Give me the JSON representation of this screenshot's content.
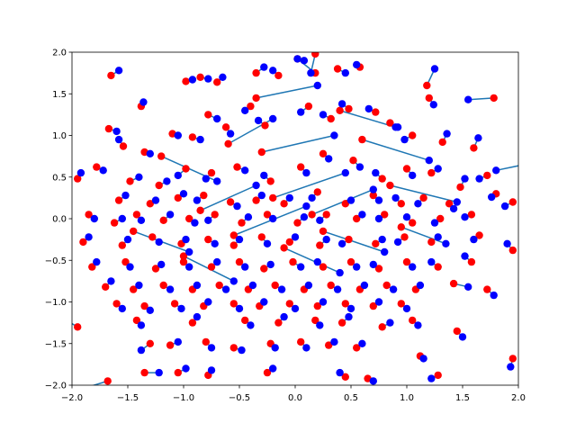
{
  "chart_data": {
    "type": "scatter",
    "xlim": [
      -2.0,
      2.0
    ],
    "ylim": [
      -2.0,
      2.0
    ],
    "xticks": [
      -2.0,
      -1.5,
      -1.0,
      -0.5,
      0.0,
      0.5,
      1.0,
      1.5,
      2.0
    ],
    "yticks": [
      -2.0,
      -1.5,
      -1.0,
      -0.5,
      0.0,
      0.5,
      1.0,
      1.5,
      2.0
    ],
    "xtick_labels": [
      "−2.0",
      "−1.5",
      "−1.0",
      "−0.5",
      "0.0",
      "0.5",
      "1.0",
      "1.5",
      "2.0"
    ],
    "ytick_labels": [
      "−2.0",
      "−1.5",
      "−1.0",
      "−0.5",
      "0.0",
      "0.5",
      "1.0",
      "1.5",
      "2.0"
    ],
    "grid": false,
    "legend": "none",
    "colors": {
      "start": "#ff0000",
      "end": "#0000ff",
      "link": "#1f77b4"
    },
    "series": [
      {
        "name": "",
        "kind": "linked-pairs",
        "pairs": [
          [
            -1.65,
            1.72,
            -1.58,
            1.78
          ],
          [
            -1.38,
            1.35,
            -1.36,
            1.4
          ],
          [
            -0.98,
            1.65,
            -0.92,
            1.67
          ],
          [
            -0.85,
            1.7,
            -0.78,
            1.68
          ],
          [
            -0.7,
            1.64,
            -0.65,
            1.7
          ],
          [
            -0.35,
            1.75,
            -0.28,
            1.82
          ],
          [
            -0.15,
            1.72,
            -0.2,
            1.78
          ],
          [
            0.02,
            1.92,
            0.08,
            1.9
          ],
          [
            0.18,
            1.98,
            0.14,
            1.75
          ],
          [
            0.38,
            1.8,
            0.45,
            1.75
          ],
          [
            0.58,
            1.82,
            0.55,
            1.85
          ],
          [
            1.18,
            1.6,
            1.25,
            1.8
          ],
          [
            1.2,
            1.45,
            1.24,
            1.37
          ],
          [
            1.78,
            1.45,
            1.55,
            1.43
          ],
          [
            -1.67,
            1.08,
            -1.6,
            1.05
          ],
          [
            -1.54,
            0.87,
            -1.58,
            0.95
          ],
          [
            -1.35,
            0.8,
            -1.3,
            0.78
          ],
          [
            -1.1,
            1.02,
            -1.05,
            1.0
          ],
          [
            -0.92,
            0.98,
            -0.85,
            0.95
          ],
          [
            -0.62,
            1.1,
            -0.58,
            1.02
          ],
          [
            -0.78,
            1.25,
            -0.7,
            1.2
          ],
          [
            -0.4,
            1.35,
            -0.45,
            1.3
          ],
          [
            -0.27,
            1.12,
            -0.33,
            1.18
          ],
          [
            0.12,
            1.35,
            0.05,
            1.28
          ],
          [
            0.32,
            1.2,
            0.25,
            1.25
          ],
          [
            0.48,
            1.32,
            0.42,
            1.38
          ],
          [
            0.72,
            1.28,
            0.66,
            1.32
          ],
          [
            0.85,
            1.15,
            0.92,
            1.1
          ],
          [
            1.05,
            1.0,
            0.98,
            0.95
          ],
          [
            1.32,
            0.92,
            1.36,
            1.02
          ],
          [
            1.6,
            0.85,
            1.64,
            0.97
          ],
          [
            -1.78,
            0.62,
            -1.72,
            0.58
          ],
          [
            -1.48,
            0.45,
            -1.4,
            0.5
          ],
          [
            -1.22,
            0.4,
            -1.15,
            0.45
          ],
          [
            -0.98,
            0.6,
            -1.05,
            0.52
          ],
          [
            -0.75,
            0.55,
            -0.8,
            0.48
          ],
          [
            -0.52,
            0.62,
            -0.45,
            0.58
          ],
          [
            -0.22,
            0.45,
            -0.28,
            0.52
          ],
          [
            0.05,
            0.62,
            0.1,
            0.55
          ],
          [
            0.25,
            0.78,
            0.3,
            0.72
          ],
          [
            0.52,
            0.7,
            0.58,
            0.62
          ],
          [
            0.78,
            0.48,
            0.72,
            0.55
          ],
          [
            1.0,
            0.6,
            1.05,
            0.52
          ],
          [
            1.22,
            0.55,
            1.28,
            0.6
          ],
          [
            1.48,
            0.38,
            1.52,
            0.48
          ],
          [
            1.72,
            0.52,
            1.65,
            0.48
          ],
          [
            1.8,
            0.3,
            1.76,
            0.26
          ],
          [
            -1.95,
            0.48,
            -1.92,
            0.55
          ],
          [
            -1.58,
            0.22,
            -1.52,
            0.28
          ],
          [
            -1.3,
            0.18,
            -1.25,
            0.22
          ],
          [
            -1.05,
            0.25,
            -1.0,
            0.3
          ],
          [
            -0.82,
            0.28,
            -0.88,
            0.22
          ],
          [
            -0.58,
            0.2,
            -0.52,
            0.15
          ],
          [
            -0.35,
            0.22,
            -0.3,
            0.28
          ],
          [
            -0.1,
            0.18,
            -0.05,
            0.25
          ],
          [
            0.2,
            0.32,
            0.15,
            0.25
          ],
          [
            0.45,
            0.18,
            0.5,
            0.22
          ],
          [
            0.7,
            0.28,
            0.75,
            0.22
          ],
          [
            0.95,
            0.18,
            0.9,
            0.25
          ],
          [
            1.15,
            0.25,
            1.1,
            0.18
          ],
          [
            1.38,
            0.18,
            1.42,
            0.12
          ],
          [
            -1.85,
            0.05,
            -1.8,
            0.0
          ],
          [
            -1.62,
            -0.05,
            -1.55,
            0.0
          ],
          [
            -1.42,
            0.05,
            -1.38,
            -0.02
          ],
          [
            -1.18,
            -0.02,
            -1.12,
            0.05
          ],
          [
            -0.95,
            0.0,
            -0.9,
            -0.05
          ],
          [
            -0.72,
            0.05,
            -0.78,
            -0.02
          ],
          [
            -0.48,
            -0.05,
            -0.42,
            0.02
          ],
          [
            -0.25,
            0.05,
            -0.2,
            0.0
          ],
          [
            0.02,
            -0.05,
            0.08,
            0.02
          ],
          [
            0.28,
            0.05,
            0.22,
            -0.02
          ],
          [
            0.55,
            0.0,
            0.6,
            0.05
          ],
          [
            0.8,
            0.05,
            0.75,
            0.0
          ],
          [
            1.05,
            -0.05,
            1.0,
            0.02
          ],
          [
            1.3,
            0.0,
            1.25,
            -0.05
          ],
          [
            1.58,
            0.05,
            1.52,
            0.02
          ],
          [
            1.95,
            0.2,
            1.88,
            0.15
          ],
          [
            -1.9,
            -0.28,
            -1.85,
            -0.22
          ],
          [
            -1.55,
            -0.32,
            -1.5,
            -0.25
          ],
          [
            -1.28,
            -0.22,
            -1.22,
            -0.28
          ],
          [
            -1.02,
            -0.3,
            -0.98,
            -0.25
          ],
          [
            -0.78,
            -0.25,
            -0.72,
            -0.3
          ],
          [
            -0.55,
            -0.32,
            -0.5,
            -0.25
          ],
          [
            -0.3,
            -0.22,
            -0.25,
            -0.3
          ],
          [
            -0.05,
            -0.28,
            0.0,
            -0.22
          ],
          [
            0.22,
            -0.32,
            0.28,
            -0.25
          ],
          [
            0.48,
            -0.25,
            0.42,
            -0.3
          ],
          [
            0.72,
            -0.3,
            0.78,
            -0.25
          ],
          [
            0.98,
            -0.22,
            0.92,
            -0.28
          ],
          [
            1.22,
            -0.28,
            1.28,
            -0.22
          ],
          [
            1.65,
            -0.2,
            1.6,
            -0.25
          ],
          [
            1.95,
            -0.38,
            1.9,
            -0.3
          ],
          [
            -1.82,
            -0.58,
            -1.78,
            -0.52
          ],
          [
            -1.52,
            -0.52,
            -1.48,
            -0.58
          ],
          [
            -1.25,
            -0.6,
            -1.2,
            -0.55
          ],
          [
            -1.0,
            -0.52,
            -0.95,
            -0.58
          ],
          [
            -0.75,
            -0.58,
            -0.7,
            -0.52
          ],
          [
            -0.5,
            -0.52,
            -0.45,
            -0.58
          ],
          [
            -0.28,
            -0.6,
            -0.22,
            -0.55
          ],
          [
            -0.02,
            -0.52,
            0.05,
            -0.58
          ],
          [
            0.25,
            -0.58,
            0.2,
            -0.52
          ],
          [
            0.5,
            -0.52,
            0.55,
            -0.58
          ],
          [
            0.75,
            -0.6,
            0.7,
            -0.55
          ],
          [
            1.0,
            -0.52,
            1.05,
            -0.58
          ],
          [
            1.28,
            -0.58,
            1.22,
            -0.52
          ],
          [
            1.58,
            -0.52,
            1.52,
            -0.45
          ],
          [
            -1.7,
            -0.82,
            -1.65,
            -0.75
          ],
          [
            -1.45,
            -0.85,
            -1.4,
            -0.8
          ],
          [
            -1.18,
            -0.8,
            -1.12,
            -0.85
          ],
          [
            -0.92,
            -0.85,
            -0.88,
            -0.8
          ],
          [
            -0.68,
            -0.8,
            -0.62,
            -0.85
          ],
          [
            -0.42,
            -0.85,
            -0.38,
            -0.8
          ],
          [
            -0.18,
            -0.8,
            -0.12,
            -0.85
          ],
          [
            0.08,
            -0.85,
            0.12,
            -0.8
          ],
          [
            0.32,
            -0.8,
            0.38,
            -0.85
          ],
          [
            0.58,
            -0.85,
            0.62,
            -0.8
          ],
          [
            0.82,
            -0.8,
            0.88,
            -0.85
          ],
          [
            1.08,
            -0.85,
            1.12,
            -0.8
          ],
          [
            1.42,
            -0.78,
            1.55,
            -0.82
          ],
          [
            1.72,
            -0.85,
            1.78,
            -0.92
          ],
          [
            -1.6,
            -1.02,
            -1.55,
            -1.08
          ],
          [
            -1.35,
            -1.05,
            -1.3,
            -1.1
          ],
          [
            -1.08,
            -1.02,
            -1.02,
            -1.08
          ],
          [
            -0.82,
            -1.05,
            -0.78,
            -1.0
          ],
          [
            -0.55,
            -1.02,
            -0.5,
            -1.08
          ],
          [
            -0.32,
            -1.05,
            -0.28,
            -1.0
          ],
          [
            -0.05,
            -1.02,
            0.0,
            -1.08
          ],
          [
            0.2,
            -1.05,
            0.25,
            -1.0
          ],
          [
            0.45,
            -1.02,
            0.5,
            -1.08
          ],
          [
            0.7,
            -1.05,
            0.75,
            -1.0
          ],
          [
            0.95,
            -1.02,
            1.0,
            -1.08
          ],
          [
            -1.42,
            -1.22,
            -1.38,
            -1.28
          ],
          [
            -0.92,
            -1.25,
            -0.88,
            -1.18
          ],
          [
            -0.45,
            -1.22,
            -0.4,
            -1.28
          ],
          [
            -0.15,
            -1.25,
            -0.1,
            -1.18
          ],
          [
            0.18,
            -1.22,
            0.22,
            -1.28
          ],
          [
            0.42,
            -1.25,
            0.48,
            -1.18
          ],
          [
            0.78,
            -1.3,
            0.85,
            -1.25
          ],
          [
            1.05,
            -1.22,
            1.1,
            -1.28
          ],
          [
            1.45,
            -1.35,
            1.5,
            -1.42
          ],
          [
            -1.3,
            -1.5,
            -1.38,
            -1.58
          ],
          [
            -1.12,
            -1.52,
            -1.05,
            -1.48
          ],
          [
            -0.8,
            -1.48,
            -0.75,
            -1.55
          ],
          [
            -0.55,
            -1.55,
            -0.48,
            -1.58
          ],
          [
            -0.22,
            -1.5,
            -0.18,
            -1.55
          ],
          [
            0.05,
            -1.48,
            0.1,
            -1.55
          ],
          [
            0.3,
            -1.52,
            0.35,
            -1.48
          ],
          [
            0.55,
            -1.55,
            0.6,
            -1.5
          ],
          [
            1.12,
            -1.65,
            1.15,
            -1.68
          ],
          [
            1.95,
            -1.68,
            1.93,
            -1.78
          ],
          [
            -1.35,
            -1.85,
            -1.22,
            -1.85
          ],
          [
            -1.05,
            -1.85,
            -0.98,
            -1.8
          ],
          [
            -0.78,
            -1.88,
            -0.75,
            -1.82
          ],
          [
            -0.25,
            -1.85,
            -0.2,
            -1.8
          ],
          [
            0.45,
            -1.9,
            0.4,
            -1.85
          ],
          [
            0.65,
            -1.92,
            0.7,
            -1.95
          ],
          [
            1.28,
            -1.88,
            1.22,
            -1.92
          ],
          [
            -1.68,
            -1.95,
            -2.05,
            -2.1
          ],
          [
            -1.95,
            -1.3,
            -2.05,
            -1.22
          ],
          [
            2.05,
            0.65,
            1.8,
            0.58
          ],
          [
            0.18,
            1.75,
            0.02,
            1.92
          ],
          [
            -0.3,
            0.8,
            0.35,
            1.0
          ],
          [
            -0.2,
            0.25,
            0.45,
            0.55
          ],
          [
            0.15,
            0.05,
            0.7,
            0.35
          ],
          [
            -0.55,
            -0.2,
            0.1,
            0.15
          ],
          [
            -0.85,
            0.1,
            -0.35,
            0.4
          ],
          [
            0.6,
            0.95,
            1.2,
            0.7
          ],
          [
            -1.2,
            0.75,
            -0.7,
            0.45
          ],
          [
            -1.45,
            -0.15,
            -0.95,
            -0.4
          ],
          [
            0.25,
            -0.15,
            0.8,
            -0.4
          ],
          [
            -0.1,
            -0.35,
            0.4,
            -0.65
          ],
          [
            0.85,
            0.4,
            1.45,
            0.2
          ],
          [
            -0.6,
            0.9,
            -0.2,
            1.2
          ],
          [
            0.4,
            1.3,
            0.9,
            1.1
          ],
          [
            -1.0,
            -0.45,
            -0.55,
            -0.75
          ],
          [
            0.95,
            -0.1,
            1.35,
            -0.3
          ],
          [
            -0.35,
            1.45,
            0.2,
            1.6
          ]
        ]
      }
    ]
  }
}
